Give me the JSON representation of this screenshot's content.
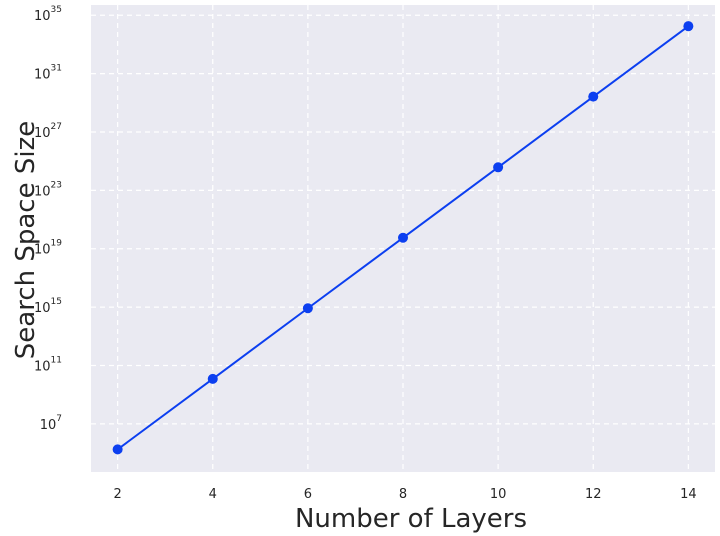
{
  "chart_data": {
    "type": "line",
    "title": "",
    "xlabel": "Number of Layers",
    "ylabel": "Search Space Size",
    "y_scale": "log10",
    "grid": true,
    "grid_style": "dashed",
    "background": "#EAEAF2",
    "series": [
      {
        "color": "#0C3FF0",
        "x": [
          2,
          4,
          6,
          8,
          10,
          12,
          14
        ],
        "log10_y": [
          5.25,
          10.08,
          14.92,
          19.75,
          24.58,
          29.42,
          34.25
        ]
      }
    ],
    "x_ticks": [
      2,
      4,
      6,
      8,
      10,
      12,
      14
    ],
    "y_ticks": [
      {
        "base": "10",
        "exp": "7"
      },
      {
        "base": "10",
        "exp": "11"
      },
      {
        "base": "10",
        "exp": "15"
      },
      {
        "base": "10",
        "exp": "19"
      },
      {
        "base": "10",
        "exp": "23"
      },
      {
        "base": "10",
        "exp": "27"
      },
      {
        "base": "10",
        "exp": "31"
      },
      {
        "base": "10",
        "exp": "35"
      }
    ],
    "xlim": [
      1.44,
      14.56
    ],
    "ylim_log10": [
      3.7,
      35.7
    ]
  }
}
